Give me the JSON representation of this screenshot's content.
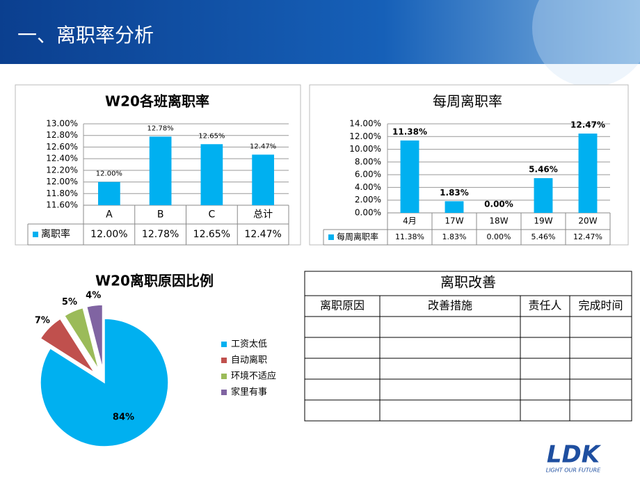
{
  "header": {
    "title": "一、离职率分析"
  },
  "chart_data": [
    {
      "type": "bar",
      "title": "W20各班离职率",
      "categories": [
        "A",
        "B",
        "C",
        "总计"
      ],
      "series": [
        {
          "name": "离职率",
          "color": "#00b0f0",
          "values": [
            12.0,
            12.78,
            12.65,
            12.47
          ],
          "value_labels": [
            "12.00%",
            "12.78%",
            "12.65%",
            "12.47%"
          ]
        }
      ],
      "ylim": [
        11.6,
        13.0
      ],
      "yticks": [
        {
          "value": 11.6,
          "label": "11.60%"
        },
        {
          "value": 11.8,
          "label": "11.80%"
        },
        {
          "value": 12.0,
          "label": "12.00%"
        },
        {
          "value": 12.2,
          "label": "12.20%"
        },
        {
          "value": 12.4,
          "label": "12.40%"
        },
        {
          "value": 12.6,
          "label": "12.60%"
        },
        {
          "value": 12.8,
          "label": "12.80%"
        },
        {
          "value": 13.0,
          "label": "13.00%"
        }
      ],
      "grid": true
    },
    {
      "type": "bar",
      "title": "每周离职率",
      "categories": [
        "4月",
        "17W",
        "18W",
        "19W",
        "20W"
      ],
      "series": [
        {
          "name": "每周离职率",
          "color": "#00b0f0",
          "values": [
            11.38,
            1.83,
            0,
            5.46,
            12.47
          ],
          "value_labels": [
            "11.38%",
            "1.83%",
            "0.00%",
            "5.46%",
            "12.47%"
          ]
        }
      ],
      "ylim": [
        0,
        14
      ],
      "yticks": [
        {
          "value": 0,
          "label": "0.00%"
        },
        {
          "value": 2,
          "label": "2.00%"
        },
        {
          "value": 4,
          "label": "4.00%"
        },
        {
          "value": 6,
          "label": "6.00%"
        },
        {
          "value": 8,
          "label": "8.00%"
        },
        {
          "value": 10,
          "label": "10.00%"
        },
        {
          "value": 12,
          "label": "12.00%"
        },
        {
          "value": 14,
          "label": "14.00%"
        }
      ],
      "grid": true
    },
    {
      "type": "pie",
      "title": "W20离职原因比例",
      "categories": [
        "工资太低",
        "自动离职",
        "环境不适应",
        "家里有事"
      ],
      "values": [
        84,
        7,
        5,
        4
      ],
      "value_labels": [
        "84%",
        "7%",
        "5%",
        "4%"
      ],
      "colors": [
        "#00b0f0",
        "#c0504d",
        "#9bbb59",
        "#8064a2"
      ],
      "legend": "right"
    }
  ],
  "table": {
    "title": "离职改善",
    "columns": [
      "离职原因",
      "改善措施",
      "责任人",
      "完成时间"
    ]
  },
  "logo": {
    "brand": "LDK",
    "slogan": "LIGHT OUR FUTURE"
  }
}
